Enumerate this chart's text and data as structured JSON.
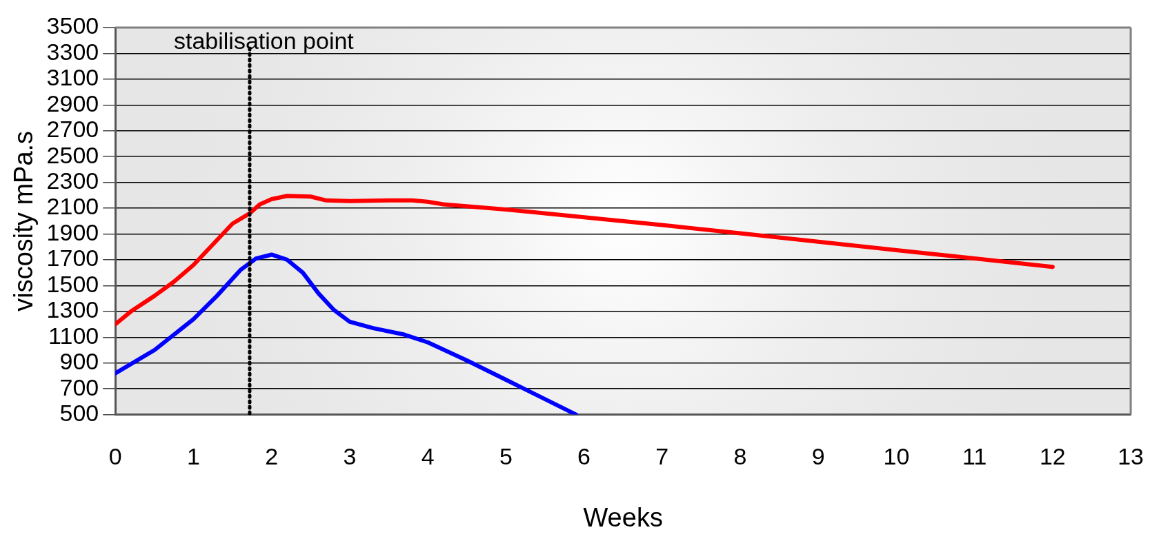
{
  "chart_data": {
    "type": "line",
    "xlabel": "Weeks",
    "ylabel": "viscosity mPa.s",
    "xlim": [
      0,
      13
    ],
    "xticks": [
      0,
      1,
      2,
      3,
      4,
      5,
      6,
      7,
      8,
      9,
      10,
      11,
      12,
      13
    ],
    "ylim": [
      500,
      3500
    ],
    "yticks": [
      500,
      700,
      900,
      1100,
      1300,
      1500,
      1700,
      1900,
      2100,
      2300,
      2500,
      2700,
      2900,
      3100,
      3300,
      3500
    ],
    "grid": "y",
    "legend": false,
    "marker": "none",
    "line_style": "solid",
    "series": [
      {
        "color": "#ff0000",
        "x": [
          0,
          0.2,
          0.5,
          0.75,
          1,
          1.25,
          1.5,
          1.72,
          1.85,
          2,
          2.2,
          2.5,
          2.7,
          3,
          3.5,
          3.8,
          4,
          4.2,
          5,
          6,
          7,
          8,
          9,
          10,
          11,
          12
        ],
        "values": [
          1200,
          1300,
          1420,
          1530,
          1660,
          1820,
          1980,
          2060,
          2130,
          2170,
          2195,
          2190,
          2160,
          2155,
          2160,
          2160,
          2150,
          2130,
          2090,
          2030,
          1970,
          1905,
          1840,
          1775,
          1710,
          1645
        ]
      },
      {
        "color": "#0000ff",
        "x": [
          0,
          0.5,
          1,
          1.3,
          1.6,
          1.8,
          2,
          2.2,
          2.4,
          2.6,
          2.8,
          3,
          3.3,
          3.7,
          4,
          4.5,
          5,
          5.5,
          5.9
        ],
        "values": [
          820,
          1000,
          1240,
          1420,
          1620,
          1710,
          1740,
          1700,
          1600,
          1440,
          1310,
          1220,
          1170,
          1120,
          1060,
          920,
          770,
          620,
          500
        ]
      }
    ],
    "ref_lines": [
      {
        "axis": "x",
        "value": 1.72,
        "label": "stabilisation point",
        "color": "#000000",
        "line_style": "dotted"
      }
    ]
  }
}
